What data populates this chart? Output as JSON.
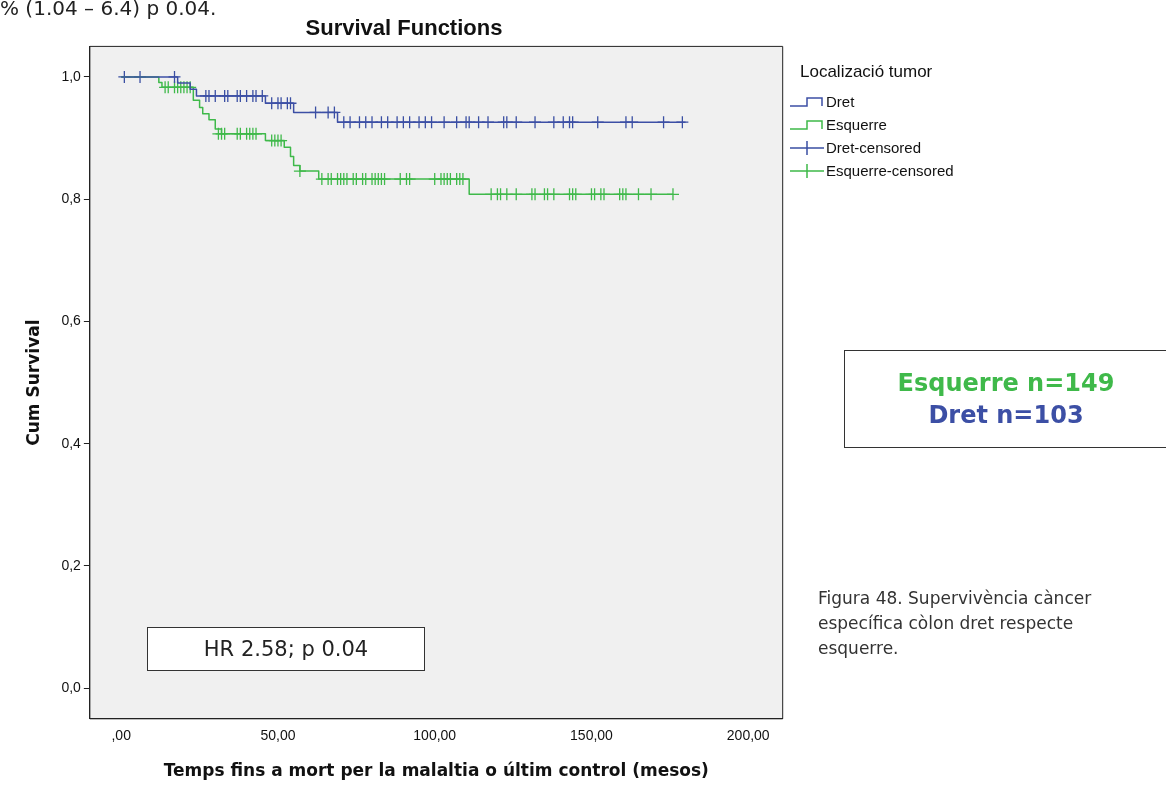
{
  "chart_data": {
    "type": "step",
    "title": "Survival Functions",
    "xlabel": "Temps fins a mort per la malaltia o últim control (mesos)",
    "ylabel": "Cum Survival",
    "legend_title": "Localizació tumor",
    "legend": "right",
    "xlim": [
      -10,
      211
    ],
    "ylim": [
      -0.05,
      1.05
    ],
    "xticks": [
      {
        "value": 0,
        "label": ",00"
      },
      {
        "value": 50,
        "label": "50,00"
      },
      {
        "value": 100,
        "label": "100,00"
      },
      {
        "value": 150,
        "label": "150,00"
      },
      {
        "value": 200,
        "label": "200,00"
      }
    ],
    "yticks": [
      {
        "value": 0,
        "label": "0,0"
      },
      {
        "value": 0.2,
        "label": "0,2"
      },
      {
        "value": 0.4,
        "label": "0,4"
      },
      {
        "value": 0.6,
        "label": "0,6"
      },
      {
        "value": 0.8,
        "label": "0,8"
      },
      {
        "value": 1,
        "label": "1,0"
      }
    ],
    "grid": false,
    "series": [
      {
        "name": "Dret",
        "color": "#3c4fa5",
        "x": [
          0,
          18,
          22,
          24,
          46,
          55,
          69,
          180
        ],
        "values": [
          1,
          0.99,
          0.98,
          0.969,
          0.957,
          0.942,
          0.926,
          0.926
        ]
      },
      {
        "name": "Esquerre",
        "color": "#3fb94a",
        "x": [
          0,
          12,
          13,
          23,
          25,
          26,
          28,
          30,
          32,
          46,
          52,
          54,
          55,
          57,
          63,
          111,
          176
        ],
        "values": [
          1,
          0.991,
          0.983,
          0.962,
          0.95,
          0.94,
          0.93,
          0.915,
          0.907,
          0.896,
          0.885,
          0.87,
          0.855,
          0.846,
          0.833,
          0.808,
          0.808
        ]
      },
      {
        "name": "Dret-censored",
        "type": "scatter",
        "marker": "cross",
        "color": "#3a4fa3",
        "x": [
          1,
          6,
          17,
          27,
          28,
          30,
          33,
          34,
          37,
          38,
          40,
          42,
          43,
          45,
          48,
          50,
          51,
          53,
          54,
          62,
          66,
          68,
          71,
          73,
          76,
          78,
          80,
          83,
          85,
          88,
          90,
          92,
          95,
          97,
          99,
          103,
          107,
          110,
          111,
          114,
          117,
          122,
          123,
          126,
          132,
          138,
          141,
          143,
          144,
          152,
          161,
          163,
          173,
          179
        ],
        "values": [
          1,
          1,
          1,
          0.969,
          0.969,
          0.969,
          0.969,
          0.969,
          0.969,
          0.969,
          0.969,
          0.969,
          0.969,
          0.969,
          0.957,
          0.957,
          0.957,
          0.957,
          0.957,
          0.942,
          0.942,
          0.942,
          0.926,
          0.926,
          0.926,
          0.926,
          0.926,
          0.926,
          0.926,
          0.926,
          0.926,
          0.926,
          0.926,
          0.926,
          0.926,
          0.926,
          0.926,
          0.926,
          0.926,
          0.926,
          0.926,
          0.926,
          0.926,
          0.926,
          0.926,
          0.926,
          0.926,
          0.926,
          0.926,
          0.926,
          0.926,
          0.926,
          0.926,
          0.926
        ]
      },
      {
        "name": "Esquerre-censored",
        "type": "scatter",
        "marker": "cross",
        "color": "#3fb94a",
        "x": [
          14,
          15,
          17,
          18,
          19,
          20,
          21,
          22,
          31,
          32,
          33,
          37,
          38,
          40,
          41,
          42,
          43,
          48,
          49,
          50,
          51,
          57,
          64,
          66,
          67,
          69,
          70,
          71,
          72,
          74,
          75,
          77,
          78,
          80,
          81,
          82,
          83,
          84,
          89,
          91,
          92,
          100,
          102,
          103,
          104,
          105,
          107,
          108,
          109,
          118,
          120,
          121,
          123,
          126,
          131,
          132,
          135,
          136,
          138,
          143,
          144,
          145,
          150,
          151,
          153,
          154,
          159,
          160,
          161,
          165,
          169,
          176
        ],
        "values": [
          0.983,
          0.983,
          0.983,
          0.983,
          0.983,
          0.983,
          0.983,
          0.983,
          0.907,
          0.907,
          0.907,
          0.907,
          0.907,
          0.907,
          0.907,
          0.907,
          0.907,
          0.896,
          0.896,
          0.896,
          0.896,
          0.846,
          0.833,
          0.833,
          0.833,
          0.833,
          0.833,
          0.833,
          0.833,
          0.833,
          0.833,
          0.833,
          0.833,
          0.833,
          0.833,
          0.833,
          0.833,
          0.833,
          0.833,
          0.833,
          0.833,
          0.833,
          0.833,
          0.833,
          0.833,
          0.833,
          0.833,
          0.833,
          0.833,
          0.808,
          0.808,
          0.808,
          0.808,
          0.808,
          0.808,
          0.808,
          0.808,
          0.808,
          0.808,
          0.808,
          0.808,
          0.808,
          0.808,
          0.808,
          0.808,
          0.808,
          0.808,
          0.808,
          0.808,
          0.808,
          0.808,
          0.808
        ]
      }
    ],
    "annotations": [
      "% (1.04 – 6.4) p 0.04.",
      "HR 2.58; p 0.04",
      "Esquerre n=149",
      "Dret n=103",
      "Figura 48. Supervivència càncer específica còlon dret respecte esquerre."
    ]
  }
}
